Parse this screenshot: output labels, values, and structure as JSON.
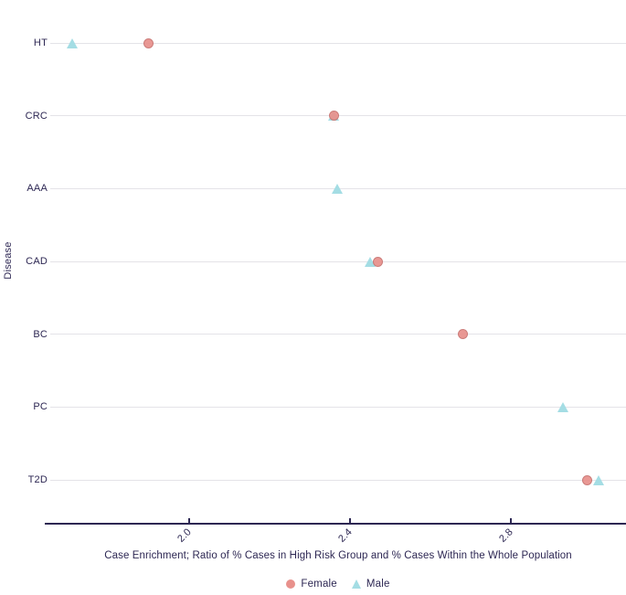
{
  "chart_data": {
    "type": "scatter",
    "title": "",
    "xlabel": "Case Enrichment; Ratio of % Cases in High Risk Group and % Cases Within the Whole Population",
    "ylabel": "Disease",
    "categories": [
      "HT",
      "CRC",
      "AAA",
      "CAD",
      "BC",
      "PC",
      "T2D"
    ],
    "series": [
      {
        "name": "Female",
        "marker": "circle",
        "color": "#e8918c",
        "values": [
          1.9,
          2.36,
          null,
          2.47,
          2.68,
          null,
          2.99
        ]
      },
      {
        "name": "Male",
        "marker": "triangle",
        "color": "#a4dde4",
        "values": [
          1.71,
          2.36,
          2.37,
          2.45,
          null,
          2.93,
          3.02
        ]
      }
    ],
    "x_ticks": [
      {
        "label": "2.0",
        "value": 2.0
      },
      {
        "label": "2.4",
        "value": 2.4
      },
      {
        "label": "2.8",
        "value": 2.8
      }
    ],
    "xlim": [
      1.655,
      3.086
    ],
    "grid": "horizontal",
    "legend_position": "bottom",
    "colors": {
      "text": "#2d2753",
      "gridline": "#e4e3e8",
      "axis_line": "#2d2753",
      "background": "#ffffff"
    }
  }
}
